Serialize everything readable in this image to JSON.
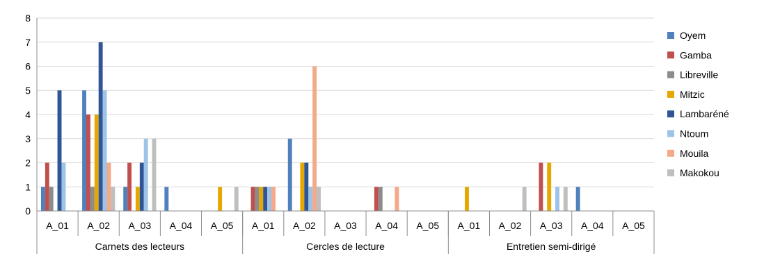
{
  "chart_data": {
    "type": "bar",
    "ylim": [
      0,
      8
    ],
    "yticks": [
      0,
      1,
      2,
      3,
      4,
      5,
      6,
      7,
      8
    ],
    "grid": true,
    "legend_position": "right",
    "groups": [
      {
        "label": "Carnets des lecteurs",
        "categories": [
          "A_01",
          "A_02",
          "A_03",
          "A_04",
          "A_05"
        ]
      },
      {
        "label": "Cercles de lecture",
        "categories": [
          "A_01",
          "A_02",
          "A_03",
          "A_04",
          "A_05"
        ]
      },
      {
        "label": "Entretien semi-dirigé",
        "categories": [
          "A_01",
          "A_02",
          "A_03",
          "A_04",
          "A_05"
        ]
      }
    ],
    "series": [
      {
        "name": "Oyem",
        "color": "#4F81BD",
        "values": [
          1,
          5,
          1,
          1,
          0,
          0,
          3,
          0,
          0,
          0,
          0,
          0,
          0,
          1,
          0
        ]
      },
      {
        "name": "Gamba",
        "color": "#C0504D",
        "values": [
          2,
          4,
          2,
          0,
          0,
          1,
          0,
          0,
          1,
          0,
          0,
          0,
          2,
          0,
          0
        ]
      },
      {
        "name": "Libreville",
        "color": "#8C8C8C",
        "values": [
          1,
          1,
          0,
          0,
          0,
          1,
          0,
          0,
          1,
          0,
          0,
          0,
          0,
          0,
          0
        ]
      },
      {
        "name": "Mitzic",
        "color": "#E4A800",
        "values": [
          0,
          4,
          1,
          0,
          1,
          1,
          2,
          0,
          0,
          0,
          1,
          0,
          2,
          0,
          0
        ]
      },
      {
        "name": "Lambaréné",
        "color": "#2F5597",
        "values": [
          5,
          7,
          2,
          0,
          0,
          1,
          2,
          0,
          0,
          0,
          0,
          0,
          0,
          0,
          0
        ]
      },
      {
        "name": "Ntoum",
        "color": "#9DC3E6",
        "values": [
          2,
          5,
          3,
          0,
          0,
          1,
          1,
          0,
          0,
          0,
          0,
          0,
          1,
          0,
          0
        ]
      },
      {
        "name": "Mouila",
        "color": "#F4A989",
        "values": [
          0,
          2,
          0,
          0,
          0,
          1,
          6,
          0,
          1,
          0,
          0,
          0,
          0,
          0,
          0
        ]
      },
      {
        "name": "Makokou",
        "color": "#BFBFBF",
        "values": [
          0,
          1,
          3,
          0,
          1,
          0,
          1,
          0,
          0,
          0,
          0,
          1,
          1,
          0,
          0
        ]
      }
    ]
  }
}
